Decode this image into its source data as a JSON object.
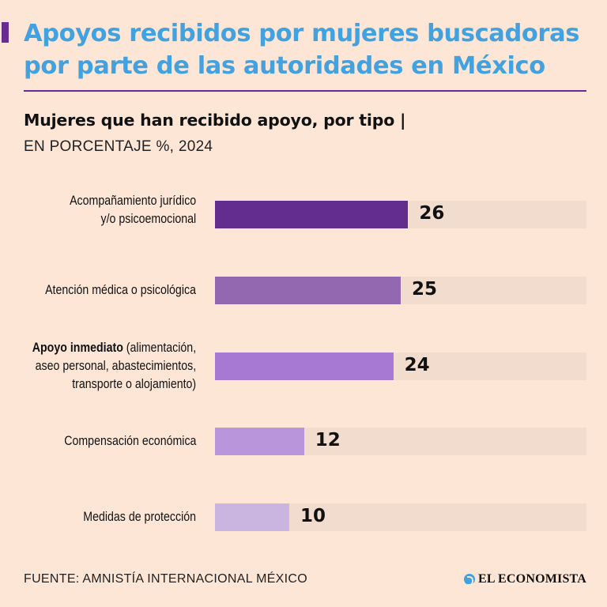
{
  "header": {
    "title": "Apoyos recibidos por mujeres buscadoras por parte de las autoridades en México",
    "subtitle": "Mujeres que han recibido apoyo, por tipo |",
    "unit": "EN PORCENTAJE %, 2024"
  },
  "footer": {
    "source": "FUENTE: AMNISTÍA INTERNACIONAL MÉXICO",
    "brand": "EL ECONOMISTA"
  },
  "colors": {
    "title": "#42a1df",
    "accent": "#6a2c91",
    "background": "#fde6d6",
    "track": "#f2dccd",
    "bars": [
      "#632c8f",
      "#9368b1",
      "#a779d3",
      "#b996db",
      "#cab5e0"
    ]
  },
  "chart_data": {
    "type": "bar",
    "orientation": "horizontal",
    "title": "Mujeres que han recibido apoyo, por tipo",
    "ylabel": "EN PORCENTAJE %, 2024",
    "xlim": [
      0,
      50
    ],
    "grid": false,
    "categories": [
      {
        "strong": "",
        "rest": "Acompañamiento jurídico\ny/o psicoemocional"
      },
      {
        "strong": "",
        "rest": "Atención médica o psicológica"
      },
      {
        "strong": "Apoyo inmediato",
        "rest": " (alimentación,\naseo personal, abastecimientos,\ntransporte o alojamiento)"
      },
      {
        "strong": "",
        "rest": "Compensación económica"
      },
      {
        "strong": "",
        "rest": "Medidas de protección"
      }
    ],
    "values": [
      26,
      25,
      24,
      12,
      10
    ]
  }
}
